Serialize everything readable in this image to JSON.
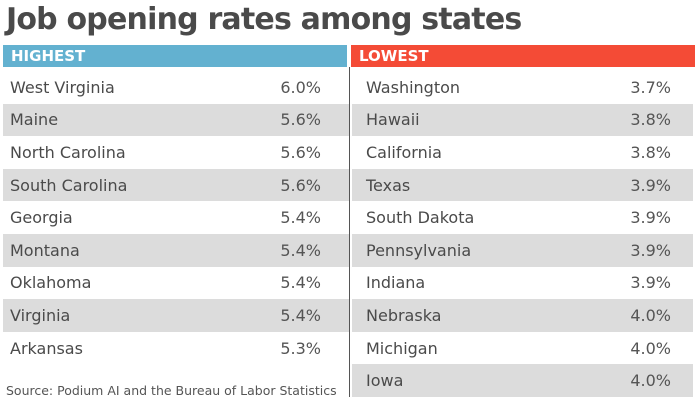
{
  "chart_data": {
    "type": "table",
    "title": "Job opening rates among states",
    "tables": [
      {
        "header": "HIGHEST",
        "color": "#63b1d0",
        "rows": [
          {
            "state": "West Virginia",
            "value": "6.0%"
          },
          {
            "state": "Maine",
            "value": "5.6%"
          },
          {
            "state": "North Carolina",
            "value": "5.6%"
          },
          {
            "state": "South Carolina",
            "value": "5.6%"
          },
          {
            "state": "Georgia",
            "value": "5.4%"
          },
          {
            "state": "Montana",
            "value": "5.4%"
          },
          {
            "state": "Oklahoma",
            "value": "5.4%"
          },
          {
            "state": "Virginia",
            "value": "5.4%"
          },
          {
            "state": "Arkansas",
            "value": "5.3%"
          }
        ]
      },
      {
        "header": "LOWEST",
        "color": "#f44b36",
        "rows": [
          {
            "state": "Washington",
            "value": "3.7%"
          },
          {
            "state": "Hawaii",
            "value": "3.8%"
          },
          {
            "state": "California",
            "value": "3.8%"
          },
          {
            "state": "Texas",
            "value": "3.9%"
          },
          {
            "state": "South Dakota",
            "value": "3.9%"
          },
          {
            "state": "Pennsylvania",
            "value": "3.9%"
          },
          {
            "state": "Indiana",
            "value": "3.9%"
          },
          {
            "state": "Nebraska",
            "value": "4.0%"
          },
          {
            "state": "Michigan",
            "value": "4.0%"
          },
          {
            "state": "Iowa",
            "value": "4.0%"
          }
        ]
      }
    ],
    "source": "Source: Podium AI and the Bureau of Labor Statistics"
  }
}
